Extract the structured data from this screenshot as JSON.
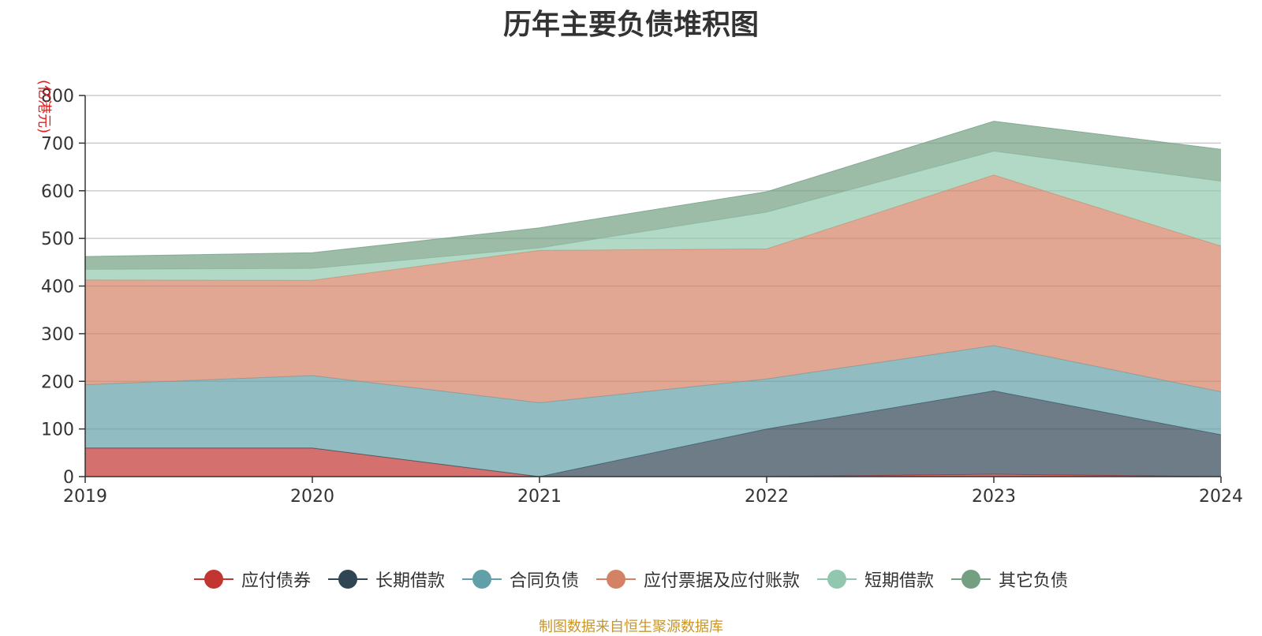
{
  "chart_data": {
    "type": "area",
    "stacked": true,
    "title": "历年主要负债堆积图",
    "ylabel": "(亿港元)",
    "xlabel": "",
    "x": [
      "2019",
      "2020",
      "2021",
      "2022",
      "2023",
      "2024"
    ],
    "ylim": [
      0,
      800
    ],
    "yticks": [
      "0",
      "100",
      "200",
      "300",
      "400",
      "500",
      "600",
      "700",
      "800"
    ],
    "grid": true,
    "legend_position": "bottom",
    "series": [
      {
        "name": "应付债券",
        "color": "#c23531",
        "values": [
          60,
          60,
          0,
          0,
          5,
          0
        ]
      },
      {
        "name": "长期借款",
        "color": "#2f4554",
        "values": [
          0,
          0,
          0,
          100,
          175,
          88
        ]
      },
      {
        "name": "合同负债",
        "color": "#61a0a8",
        "values": [
          133,
          152,
          155,
          105,
          95,
          90
        ]
      },
      {
        "name": "应付票据及应付账款",
        "color": "#d48265",
        "values": [
          220,
          200,
          320,
          273,
          358,
          306
        ]
      },
      {
        "name": "短期借款",
        "color": "#91c7ae",
        "values": [
          22,
          25,
          5,
          77,
          50,
          136
        ]
      },
      {
        "name": "其它负债",
        "color": "#749f83",
        "values": [
          27,
          33,
          42,
          43,
          63,
          67
        ]
      }
    ]
  },
  "source": "制图数据来自恒生聚源数据库"
}
